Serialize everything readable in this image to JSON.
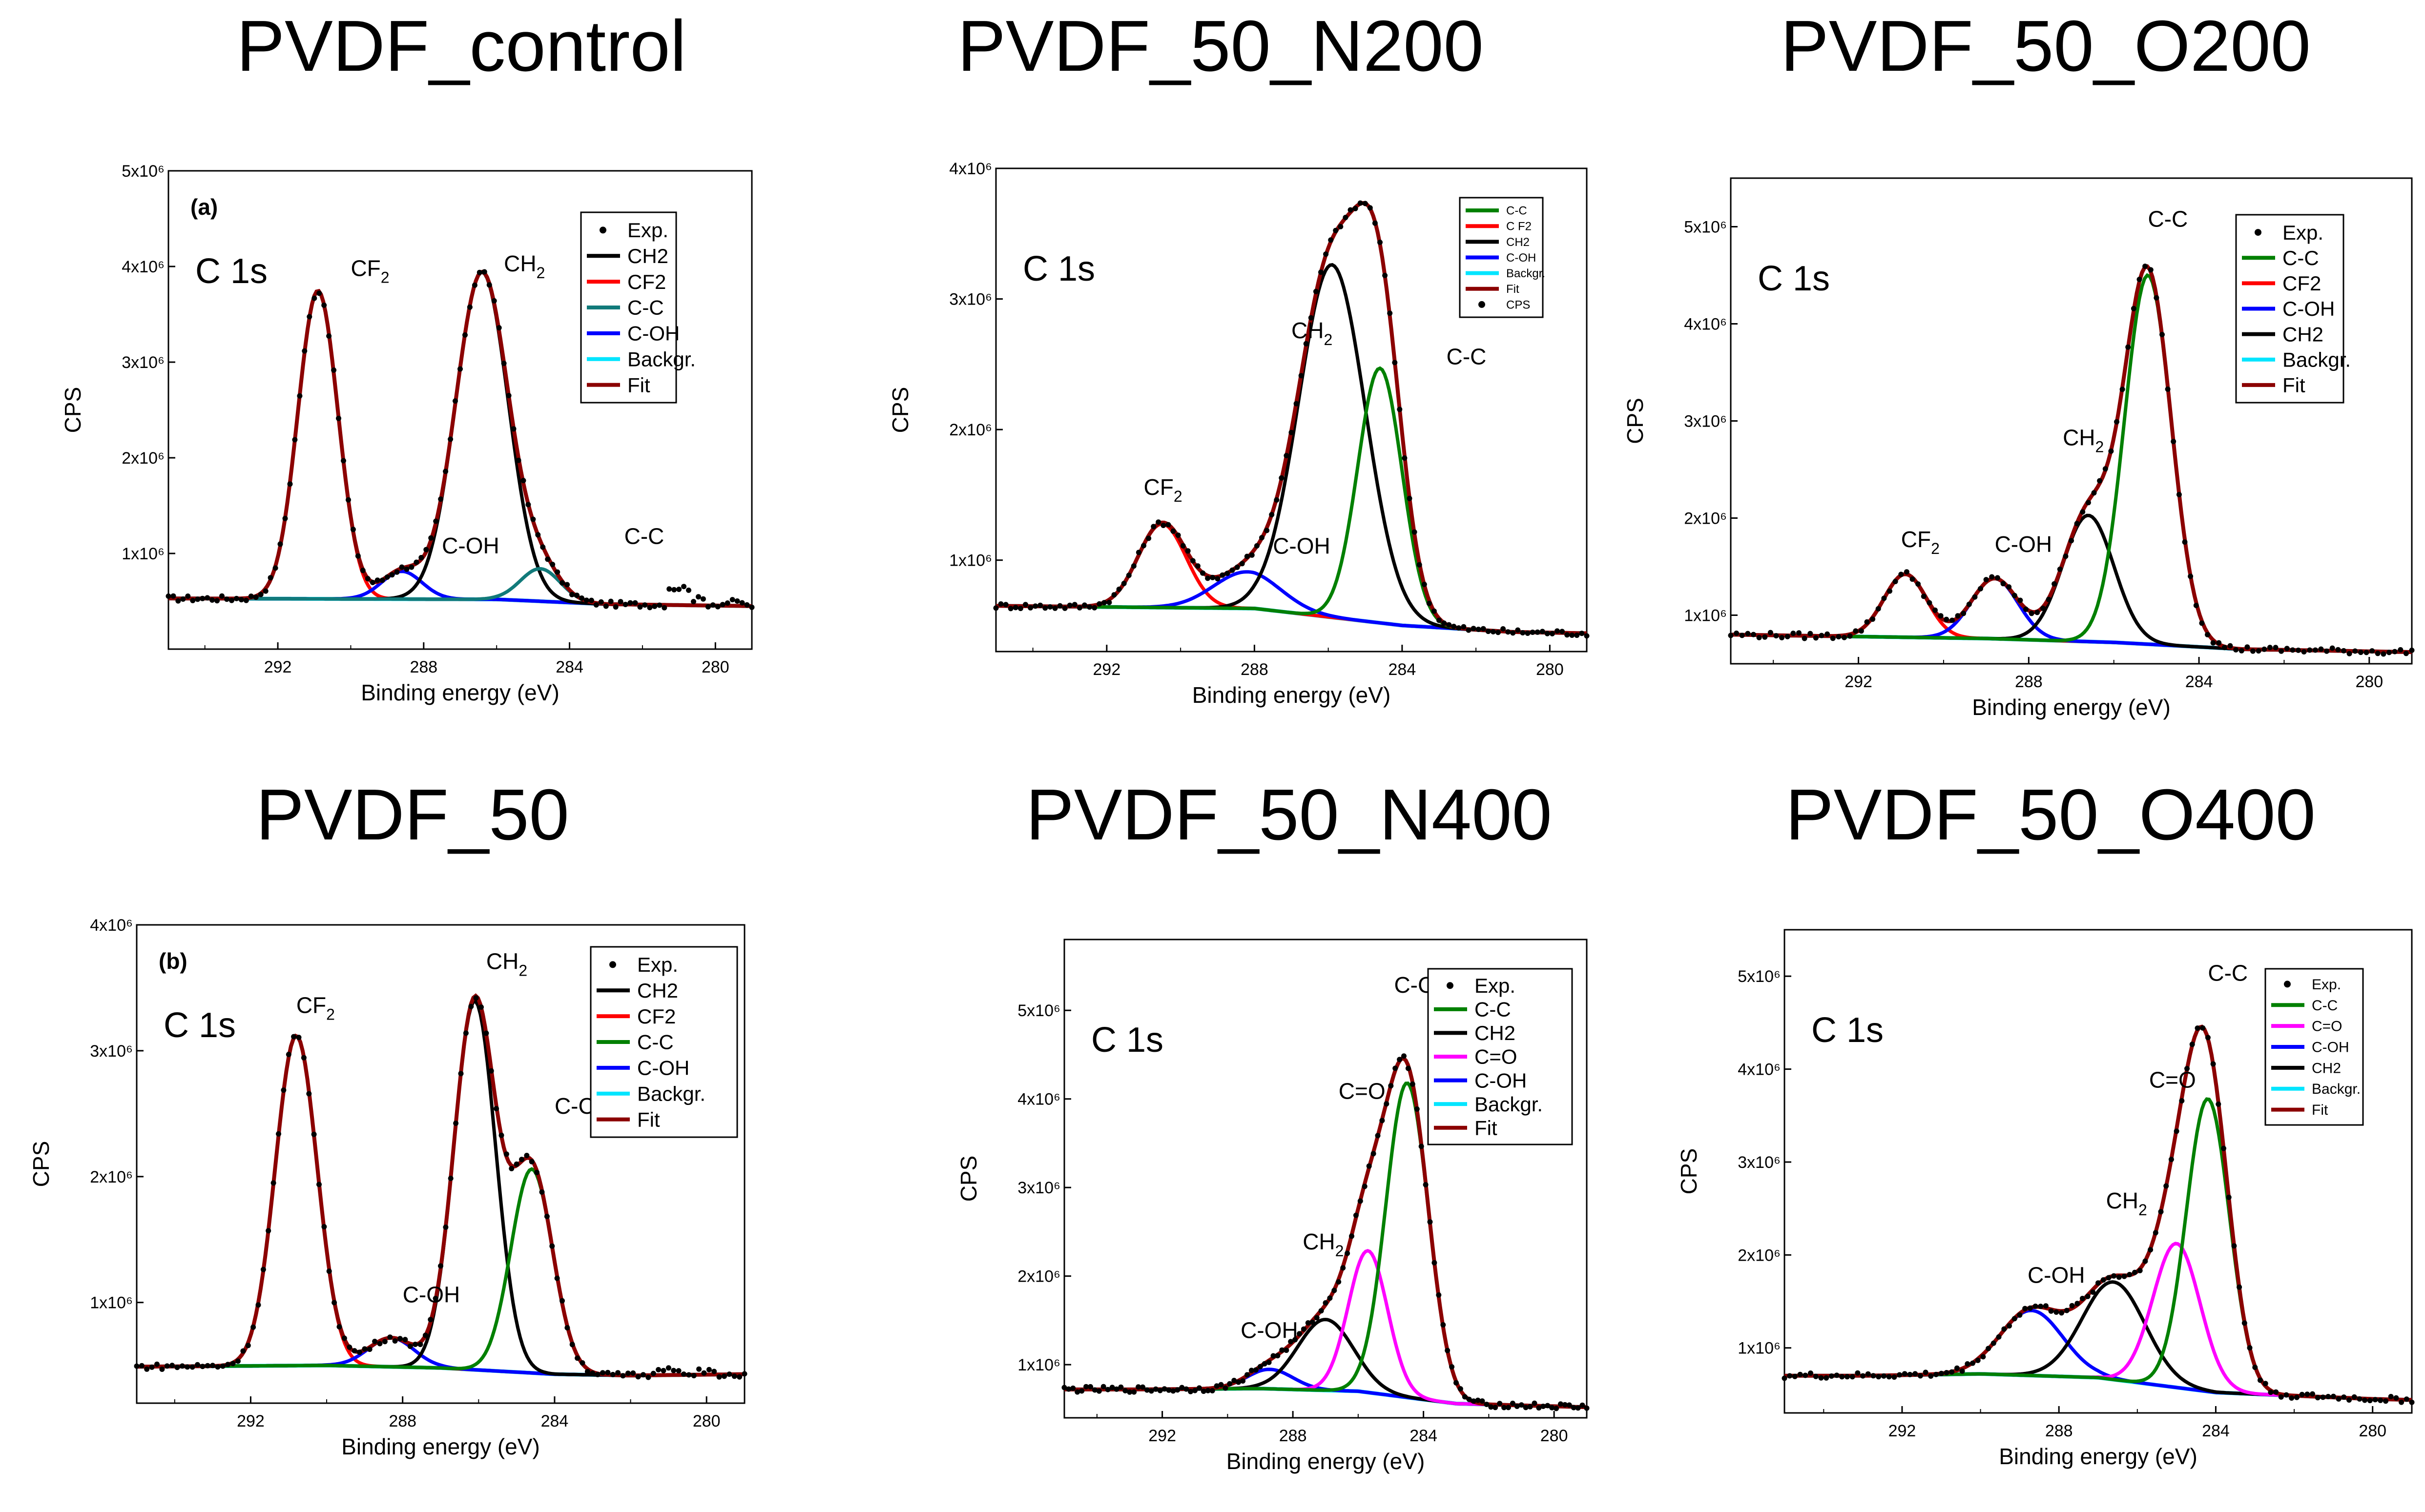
{
  "figure": {
    "shared": {
      "x_label": "Binding energy (eV)",
      "y_label": "CPS",
      "x_ticks": [
        "292",
        "288",
        "284",
        "280"
      ],
      "core_level": "C 1s",
      "exp_label": "Exp.",
      "colors": {
        "exp": "#000000",
        "ch2": "#000000",
        "cf2": "#ff0000",
        "cc_teal": "#117a7a",
        "cc": "#008000",
        "coh": "#0000ff",
        "co": "#ff00ff",
        "bg": "#00e5ff",
        "fit": "#8b0000"
      }
    }
  },
  "chart_data": [
    {
      "id": "pvdf_control",
      "type": "line",
      "title": "PVDF_control",
      "panel_label": "(a)",
      "xlabel": "Binding energy (eV)",
      "ylabel": "CPS",
      "core_level": "C 1s",
      "xlim": [
        295,
        279
      ],
      "ylim": [
        0,
        5000000
      ],
      "y_ticks": [
        {
          "v": 1000000,
          "t": "1x10⁶"
        },
        {
          "v": 2000000,
          "t": "2x10⁶"
        },
        {
          "v": 3000000,
          "t": "3x10⁶"
        },
        {
          "v": 4000000,
          "t": "4x10⁶"
        },
        {
          "v": 5000000,
          "t": "5x10⁶"
        }
      ],
      "bg": [
        [
          295,
          530000
        ],
        [
          286,
          520000
        ],
        [
          283,
          470000
        ],
        [
          279,
          450000
        ]
      ],
      "peaks": [
        {
          "name": "CF2",
          "center": 290.9,
          "amp": 3220000,
          "width": 0.55,
          "color": "#ff0000"
        },
        {
          "name": "C-OH",
          "center": 288.6,
          "amp": 290000,
          "width": 0.55,
          "color": "#0000ff"
        },
        {
          "name": "CH2",
          "center": 286.4,
          "amp": 3420000,
          "width": 0.72,
          "color": "#000000"
        },
        {
          "name": "C-C",
          "center": 284.8,
          "amp": 340000,
          "width": 0.55,
          "color": "#117a7a"
        }
      ],
      "noise": [
        [
          281,
          640000
        ],
        [
          280.5,
          520000
        ],
        [
          280,
          470000
        ],
        [
          279.5,
          490000
        ]
      ],
      "legend": [
        {
          "label": "Exp.",
          "kind": "dot",
          "color": "#000000"
        },
        {
          "label": "CH2",
          "kind": "line",
          "color": "#000000"
        },
        {
          "label": "CF2",
          "kind": "line",
          "color": "#ff0000"
        },
        {
          "label": "C-C",
          "kind": "line",
          "color": "#117a7a"
        },
        {
          "label": "C-OH",
          "kind": "line",
          "color": "#0000ff"
        },
        {
          "label": "Backgr.",
          "kind": "line",
          "color": "#00e5ff"
        },
        {
          "label": "Fit",
          "kind": "line",
          "color": "#8b0000"
        }
      ],
      "annotations": [
        {
          "text": "CF",
          "sub": "2",
          "x": 290.0,
          "y": 3900000
        },
        {
          "text": "CH",
          "sub": "2",
          "x": 285.8,
          "y": 3950000
        },
        {
          "text": "C-OH",
          "x": 287.5,
          "y": 1000000
        },
        {
          "text": "C-C",
          "x": 282.5,
          "y": 1100000
        }
      ]
    },
    {
      "id": "pvdf_50_n200",
      "type": "line",
      "title": "PVDF_50_N200",
      "xlabel": "Binding energy (eV)",
      "ylabel": "CPS",
      "core_level": "C 1s",
      "xlim": [
        295,
        279
      ],
      "ylim": [
        300000,
        4000000
      ],
      "y_ticks": [
        {
          "v": 1000000,
          "t": "1x10⁶"
        },
        {
          "v": 2000000,
          "t": "2x10⁶"
        },
        {
          "v": 3000000,
          "t": "3x10⁶"
        },
        {
          "v": 4000000,
          "t": "4x10⁶"
        }
      ],
      "bg": [
        [
          295,
          650000
        ],
        [
          288,
          630000
        ],
        [
          284,
          500000
        ],
        [
          281,
          450000
        ],
        [
          279,
          440000
        ]
      ],
      "peaks": [
        {
          "name": "CF2",
          "center": 290.5,
          "amp": 640000,
          "width": 0.65,
          "color": "#ff0000"
        },
        {
          "name": "C-OH",
          "center": 288.2,
          "amp": 280000,
          "width": 0.9,
          "color": "#0000ff"
        },
        {
          "name": "CH2",
          "center": 285.9,
          "amp": 2700000,
          "width": 0.9,
          "color": "#000000"
        },
        {
          "name": "C-C",
          "center": 284.6,
          "amp": 1950000,
          "width": 0.6,
          "color": "#008000"
        }
      ],
      "legend": [
        {
          "label": "C-C",
          "kind": "line",
          "color": "#008000"
        },
        {
          "label": "C F2",
          "kind": "line",
          "color": "#ff0000"
        },
        {
          "label": "CH2",
          "kind": "line",
          "color": "#000000"
        },
        {
          "label": "C-OH",
          "kind": "line",
          "color": "#0000ff"
        },
        {
          "label": "Backgr.",
          "kind": "line",
          "color": "#00e5ff"
        },
        {
          "label": "Fit",
          "kind": "line",
          "color": "#8b0000"
        },
        {
          "label": "CPS",
          "kind": "dot",
          "color": "#000000"
        }
      ],
      "annotations": [
        {
          "text": "CF",
          "sub": "2",
          "x": 291.0,
          "y": 1500000
        },
        {
          "text": "C-OH",
          "x": 287.5,
          "y": 1050000
        },
        {
          "text": "CH",
          "sub": "2",
          "x": 287.0,
          "y": 2700000
        },
        {
          "text": "C-C",
          "x": 282.8,
          "y": 2500000
        }
      ]
    },
    {
      "id": "pvdf_50_o200",
      "type": "line",
      "title": "PVDF_50_O200",
      "xlabel": "Binding energy (eV)",
      "ylabel": "CPS",
      "core_level": "C 1s",
      "xlim": [
        295,
        279
      ],
      "ylim": [
        500000,
        5500000
      ],
      "y_ticks": [
        {
          "v": 1000000,
          "t": "1x10⁶"
        },
        {
          "v": 2000000,
          "t": "2x10⁶"
        },
        {
          "v": 3000000,
          "t": "3x10⁶"
        },
        {
          "v": 4000000,
          "t": "4x10⁶"
        },
        {
          "v": 5000000,
          "t": "5x10⁶"
        }
      ],
      "bg": [
        [
          295,
          800000
        ],
        [
          289,
          760000
        ],
        [
          286,
          720000
        ],
        [
          283,
          650000
        ],
        [
          279,
          620000
        ]
      ],
      "peaks": [
        {
          "name": "CF2",
          "center": 290.9,
          "amp": 650000,
          "width": 0.5,
          "color": "#ff0000"
        },
        {
          "name": "C-OH",
          "center": 288.8,
          "amp": 620000,
          "width": 0.55,
          "color": "#0000ff"
        },
        {
          "name": "CH2",
          "center": 286.6,
          "amp": 1300000,
          "width": 0.6,
          "color": "#000000"
        },
        {
          "name": "C-C",
          "center": 285.2,
          "amp": 3800000,
          "width": 0.55,
          "color": "#008000"
        }
      ],
      "legend": [
        {
          "label": "Exp.",
          "kind": "dot",
          "color": "#000000"
        },
        {
          "label": "C-C",
          "kind": "line",
          "color": "#008000"
        },
        {
          "label": "CF2",
          "kind": "line",
          "color": "#ff0000"
        },
        {
          "label": "C-OH",
          "kind": "line",
          "color": "#0000ff"
        },
        {
          "label": "CH2",
          "kind": "line",
          "color": "#000000"
        },
        {
          "label": "Backgr.",
          "kind": "line",
          "color": "#00e5ff"
        },
        {
          "label": "Fit",
          "kind": "line",
          "color": "#8b0000"
        }
      ],
      "annotations": [
        {
          "text": "CF",
          "sub": "2",
          "x": 291.0,
          "y": 1700000
        },
        {
          "text": "C-OH",
          "x": 288.8,
          "y": 1650000
        },
        {
          "text": "CH",
          "sub": "2",
          "x": 287.2,
          "y": 2750000
        },
        {
          "text": "C-C",
          "x": 285.2,
          "y": 5000000
        }
      ]
    },
    {
      "id": "pvdf_50",
      "type": "line",
      "title": "PVDF_50",
      "panel_label": "(b)",
      "xlabel": "Binding energy (eV)",
      "ylabel": "CPS",
      "core_level": "C 1s",
      "xlim": [
        295,
        279
      ],
      "ylim": [
        200000,
        4000000
      ],
      "y_ticks": [
        {
          "v": 1000000,
          "t": "1x10⁶"
        },
        {
          "v": 2000000,
          "t": "2x10⁶"
        },
        {
          "v": 3000000,
          "t": "3x10⁶"
        },
        {
          "v": 4000000,
          "t": "4x10⁶"
        }
      ],
      "bg": [
        [
          295,
          490000
        ],
        [
          290,
          500000
        ],
        [
          287,
          480000
        ],
        [
          284,
          430000
        ],
        [
          282,
          420000
        ],
        [
          279,
          430000
        ]
      ],
      "peaks": [
        {
          "name": "CF2",
          "center": 290.8,
          "amp": 2620000,
          "width": 0.55,
          "color": "#ff0000"
        },
        {
          "name": "C-OH",
          "center": 288.3,
          "amp": 230000,
          "width": 0.6,
          "color": "#0000ff"
        },
        {
          "name": "CH2",
          "center": 286.1,
          "amp": 2930000,
          "width": 0.55,
          "color": "#000000"
        },
        {
          "name": "C-C",
          "center": 284.6,
          "amp": 1620000,
          "width": 0.55,
          "color": "#008000"
        }
      ],
      "noise": [
        [
          281,
          480000
        ],
        [
          280.5,
          420000
        ],
        [
          280,
          450000
        ],
        [
          279.5,
          410000
        ]
      ],
      "legend": [
        {
          "label": "Exp.",
          "kind": "dot",
          "color": "#000000"
        },
        {
          "label": "CH2",
          "kind": "line",
          "color": "#000000"
        },
        {
          "label": "CF2",
          "kind": "line",
          "color": "#ff0000"
        },
        {
          "label": "C-C",
          "kind": "line",
          "color": "#008000"
        },
        {
          "label": "C-OH",
          "kind": "line",
          "color": "#0000ff"
        },
        {
          "label": "Backgr.",
          "kind": "line",
          "color": "#00e5ff"
        },
        {
          "label": "Fit",
          "kind": "line",
          "color": "#8b0000"
        }
      ],
      "annotations": [
        {
          "text": "CF",
          "sub": "2",
          "x": 290.8,
          "y": 3300000
        },
        {
          "text": "CH",
          "sub": "2",
          "x": 285.8,
          "y": 3650000
        },
        {
          "text": "C-C",
          "x": 284.0,
          "y": 2500000
        },
        {
          "text": "C-OH",
          "x": 288.0,
          "y": 1000000
        }
      ]
    },
    {
      "id": "pvdf_50_n400",
      "type": "line",
      "title": "PVDF_50_N400",
      "xlabel": "Binding energy (eV)",
      "ylabel": "CPS",
      "core_level": "C 1s",
      "xlim": [
        295,
        279
      ],
      "ylim": [
        400000,
        5800000
      ],
      "y_ticks": [
        {
          "v": 1000000,
          "t": "1x10⁶"
        },
        {
          "v": 2000000,
          "t": "2x10⁶"
        },
        {
          "v": 3000000,
          "t": "3x10⁶"
        },
        {
          "v": 4000000,
          "t": "4x10⁶"
        },
        {
          "v": 5000000,
          "t": "5x10⁶"
        }
      ],
      "bg": [
        [
          293,
          720000
        ],
        [
          289,
          730000
        ],
        [
          286,
          700000
        ],
        [
          283,
          560000
        ],
        [
          279,
          520000
        ]
      ],
      "peaks": [
        {
          "name": "C-OH",
          "center": 288.7,
          "amp": 220000,
          "width": 0.7,
          "color": "#0000ff"
        },
        {
          "name": "CH2",
          "center": 287.0,
          "amp": 800000,
          "width": 0.85,
          "color": "#000000"
        },
        {
          "name": "C=O",
          "center": 285.7,
          "amp": 1600000,
          "width": 0.6,
          "color": "#ff00ff"
        },
        {
          "name": "C-C",
          "center": 284.5,
          "amp": 3550000,
          "width": 0.65,
          "color": "#008000"
        }
      ],
      "legend": [
        {
          "label": "Exp.",
          "kind": "dot",
          "color": "#000000"
        },
        {
          "label": "C-C",
          "kind": "line",
          "color": "#008000"
        },
        {
          "label": "CH2",
          "kind": "line",
          "color": "#000000"
        },
        {
          "label": "C=O",
          "kind": "line",
          "color": "#ff00ff"
        },
        {
          "label": "C-OH",
          "kind": "line",
          "color": "#0000ff"
        },
        {
          "label": "Backgr.",
          "kind": "line",
          "color": "#00e5ff"
        },
        {
          "label": "Fit",
          "kind": "line",
          "color": "#8b0000"
        }
      ],
      "annotations": [
        {
          "text": "C-C",
          "x": 284.9,
          "y": 5200000
        },
        {
          "text": "C=O",
          "x": 286.6,
          "y": 4000000
        },
        {
          "text": "CH",
          "sub": "2",
          "x": 287.7,
          "y": 2300000
        },
        {
          "text": "C-OH",
          "x": 289.6,
          "y": 1300000
        }
      ]
    },
    {
      "id": "pvdf_50_o400",
      "type": "line",
      "title": "PVDF_50_O400",
      "xlabel": "Binding energy (eV)",
      "ylabel": "CPS",
      "core_level": "C 1s",
      "xlim": [
        295,
        279
      ],
      "ylim": [
        300000,
        5500000
      ],
      "y_ticks": [
        {
          "v": 1000000,
          "t": "1x10⁶"
        },
        {
          "v": 2000000,
          "t": "2x10⁶"
        },
        {
          "v": 3000000,
          "t": "3x10⁶"
        },
        {
          "v": 4000000,
          "t": "4x10⁶"
        },
        {
          "v": 5000000,
          "t": "5x10⁶"
        }
      ],
      "bg": [
        [
          293,
          700000
        ],
        [
          290,
          720000
        ],
        [
          287,
          680000
        ],
        [
          284,
          520000
        ],
        [
          280,
          450000
        ],
        [
          279,
          440000
        ]
      ],
      "peaks": [
        {
          "name": "C-OH",
          "center": 288.7,
          "amp": 700000,
          "width": 0.8,
          "color": "#0000ff"
        },
        {
          "name": "CH2",
          "center": 286.6,
          "amp": 1050000,
          "width": 0.8,
          "color": "#000000"
        },
        {
          "name": "C=O",
          "center": 285.0,
          "amp": 1550000,
          "width": 0.6,
          "color": "#ff00ff"
        },
        {
          "name": "C-C",
          "center": 284.2,
          "amp": 3150000,
          "width": 0.55,
          "color": "#008000"
        }
      ],
      "legend": [
        {
          "label": "Exp.",
          "kind": "dot",
          "color": "#000000"
        },
        {
          "label": "C-C",
          "kind": "line",
          "color": "#008000"
        },
        {
          "label": "C=O",
          "kind": "line",
          "color": "#ff00ff"
        },
        {
          "label": "C-OH",
          "kind": "line",
          "color": "#0000ff"
        },
        {
          "label": "CH2",
          "kind": "line",
          "color": "#000000"
        },
        {
          "label": "Backgr.",
          "kind": "line",
          "color": "#00e5ff"
        },
        {
          "label": "Fit",
          "kind": "line",
          "color": "#8b0000"
        }
      ],
      "annotations": [
        {
          "text": "C-C",
          "x": 284.2,
          "y": 4950000
        },
        {
          "text": "C=O",
          "x": 285.7,
          "y": 3800000
        },
        {
          "text": "CH",
          "sub": "2",
          "x": 286.8,
          "y": 2500000
        },
        {
          "text": "C-OH",
          "x": 288.8,
          "y": 1700000
        }
      ]
    }
  ]
}
